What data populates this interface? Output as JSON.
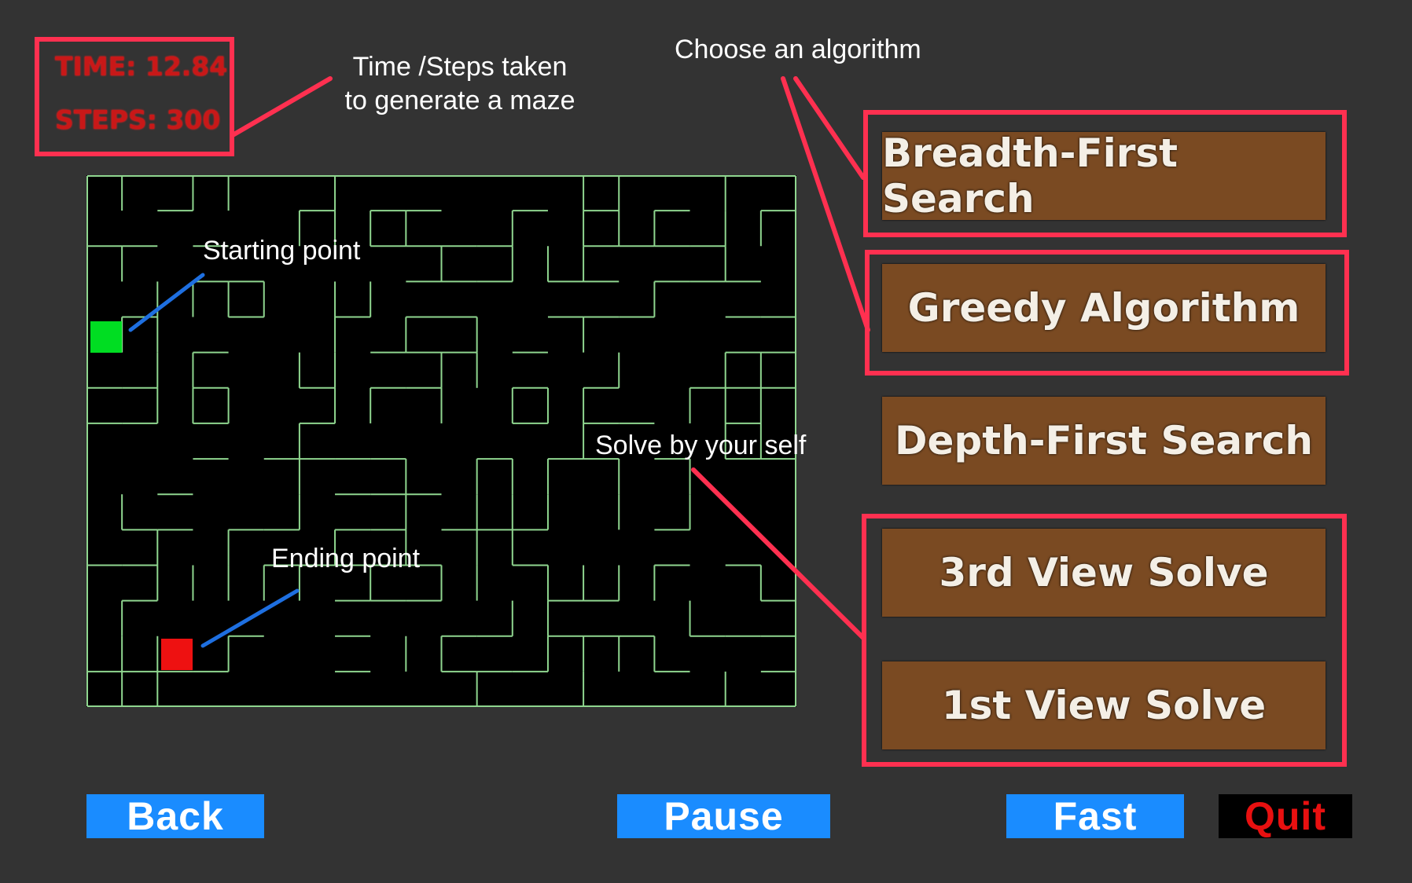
{
  "stats": {
    "time_label": "TIME: 12.84",
    "steps_label": "STEPS: 300"
  },
  "annotations": {
    "time_steps_line1": "Time /Steps taken",
    "time_steps_line2": "to generate a maze",
    "choose_algorithm": "Choose an algorithm",
    "starting_point": "Starting point",
    "ending_point": "Ending point",
    "solve_by_yourself": "Solve by your self"
  },
  "algorithms": [
    {
      "label": "Breadth-First Search"
    },
    {
      "label": "Greedy Algorithm"
    },
    {
      "label": "Depth-First Search"
    },
    {
      "label": "3rd View Solve"
    },
    {
      "label": "1st View Solve"
    }
  ],
  "controls": {
    "back": "Back",
    "pause": "Pause",
    "fast": "Fast",
    "quit": "Quit"
  },
  "colors": {
    "background": "#333333",
    "annotation_red": "#ff3050",
    "annotation_blue": "#1e6fe0",
    "maze_wall": "#8fd68f",
    "start_marker": "#00dd22",
    "end_marker": "#ee1111",
    "algo_button": "#7a4a22",
    "control_button": "#1a8cff"
  }
}
